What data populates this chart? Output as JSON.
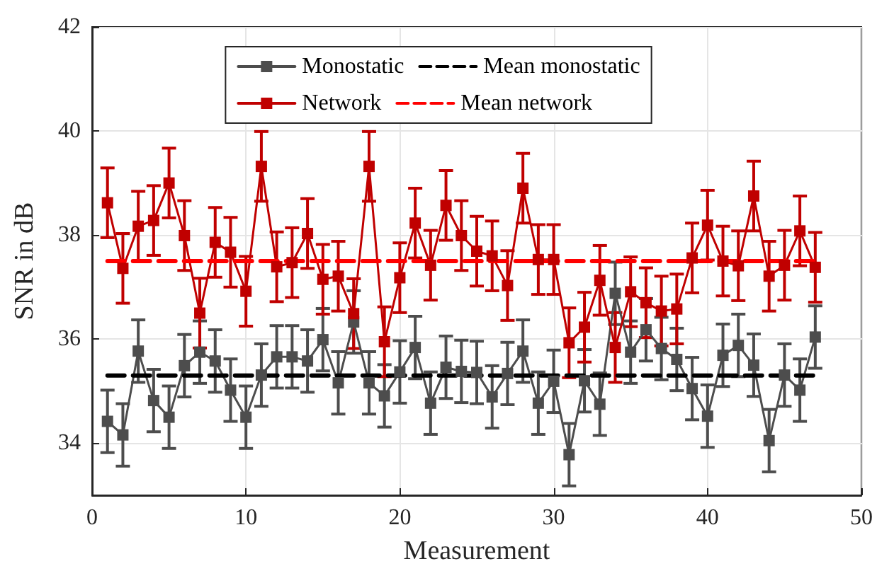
{
  "chart_data": {
    "type": "line",
    "xlabel": "Measurement",
    "ylabel": "SNR in dB",
    "x": [
      1,
      2,
      3,
      4,
      5,
      6,
      7,
      8,
      9,
      10,
      11,
      12,
      13,
      14,
      15,
      16,
      17,
      18,
      19,
      20,
      21,
      22,
      23,
      24,
      25,
      26,
      27,
      28,
      29,
      30,
      31,
      32,
      33,
      34,
      35,
      36,
      37,
      38,
      39,
      40,
      41,
      42,
      43,
      44,
      45,
      46,
      47
    ],
    "xlim": [
      0,
      50
    ],
    "xticks": [
      0,
      10,
      20,
      30,
      40,
      50
    ],
    "ylim": [
      33,
      42
    ],
    "yticks": [
      34,
      36,
      38,
      40,
      42
    ],
    "grid": true,
    "legend": "top",
    "marker": "square",
    "line_style": "solid",
    "series": [
      {
        "name": "Monostatic",
        "color": "#4d4d4d",
        "values": [
          34.42,
          34.16,
          35.77,
          34.82,
          34.5,
          35.49,
          35.75,
          35.58,
          35.02,
          34.5,
          35.31,
          35.66,
          35.66,
          35.58,
          35.99,
          35.16,
          36.33,
          35.16,
          34.91,
          35.37,
          35.84,
          34.77,
          35.46,
          35.38,
          35.36,
          34.89,
          35.34,
          35.77,
          34.77,
          35.19,
          33.78,
          35.2,
          34.75,
          36.88,
          35.75,
          36.18,
          35.82,
          35.61,
          35.05,
          34.52,
          35.69,
          35.88,
          35.5,
          34.05,
          35.31,
          35.02,
          36.04
        ],
        "errors": [
          0.6,
          0.6,
          0.6,
          0.6,
          0.6,
          0.6,
          0.6,
          0.6,
          0.6,
          0.6,
          0.6,
          0.6,
          0.6,
          0.6,
          0.6,
          0.6,
          0.6,
          0.6,
          0.6,
          0.6,
          0.6,
          0.6,
          0.6,
          0.6,
          0.6,
          0.6,
          0.6,
          0.6,
          0.6,
          0.6,
          0.6,
          0.6,
          0.6,
          0.6,
          0.6,
          0.6,
          0.6,
          0.6,
          0.6,
          0.6,
          0.6,
          0.6,
          0.6,
          0.6,
          0.6,
          0.6,
          0.6
        ]
      },
      {
        "name": "Mean monostatic",
        "type": "line",
        "color": "#000000",
        "values": [
          35.3,
          35.3,
          35.3,
          35.3,
          35.3,
          35.3,
          35.3,
          35.3,
          35.3,
          35.3,
          35.3,
          35.3,
          35.3,
          35.3,
          35.3,
          35.3,
          35.3,
          35.3,
          35.3,
          35.3,
          35.3,
          35.3,
          35.3,
          35.3,
          35.3,
          35.3,
          35.3,
          35.3,
          35.3,
          35.3,
          35.3,
          35.3,
          35.3,
          35.3,
          35.3,
          35.3,
          35.3,
          35.3,
          35.3,
          35.3,
          35.3,
          35.3,
          35.3,
          35.3,
          35.3,
          35.3,
          35.3
        ],
        "line_style": "dashed",
        "marker": "none"
      },
      {
        "name": "Network",
        "color": "#c00000",
        "values": [
          38.62,
          37.36,
          38.17,
          38.28,
          39.0,
          37.99,
          36.5,
          37.86,
          37.67,
          36.92,
          39.32,
          37.39,
          37.47,
          38.03,
          37.15,
          37.21,
          36.49,
          39.32,
          35.95,
          37.18,
          38.23,
          37.42,
          38.57,
          37.99,
          37.69,
          37.6,
          37.03,
          38.9,
          37.53,
          37.53,
          35.93,
          36.23,
          37.13,
          35.84,
          36.91,
          36.7,
          36.54,
          36.58,
          37.56,
          38.19,
          37.5,
          37.41,
          38.75,
          37.21,
          37.42,
          38.08,
          37.38
        ],
        "errors": [
          0.67,
          0.67,
          0.67,
          0.67,
          0.67,
          0.67,
          0.67,
          0.67,
          0.67,
          0.67,
          0.67,
          0.67,
          0.67,
          0.67,
          0.67,
          0.67,
          0.67,
          0.67,
          0.67,
          0.67,
          0.67,
          0.67,
          0.67,
          0.67,
          0.67,
          0.67,
          0.67,
          0.67,
          0.67,
          0.67,
          0.67,
          0.67,
          0.67,
          0.67,
          0.67,
          0.67,
          0.67,
          0.67,
          0.67,
          0.67,
          0.67,
          0.67,
          0.67,
          0.67,
          0.67,
          0.67,
          0.67
        ]
      },
      {
        "name": "Mean network",
        "type": "line",
        "color": "#ff0000",
        "values": [
          37.5,
          37.5,
          37.5,
          37.5,
          37.5,
          37.5,
          37.5,
          37.5,
          37.5,
          37.5,
          37.5,
          37.5,
          37.5,
          37.5,
          37.5,
          37.5,
          37.5,
          37.5,
          37.5,
          37.5,
          37.5,
          37.5,
          37.5,
          37.5,
          37.5,
          37.5,
          37.5,
          37.5,
          37.5,
          37.5,
          37.5,
          37.5,
          37.5,
          37.5,
          37.5,
          37.5,
          37.5,
          37.5,
          37.5,
          37.5,
          37.5,
          37.5,
          37.5,
          37.5,
          37.5,
          37.5,
          37.5
        ],
        "line_style": "dashed",
        "marker": "none"
      }
    ]
  }
}
